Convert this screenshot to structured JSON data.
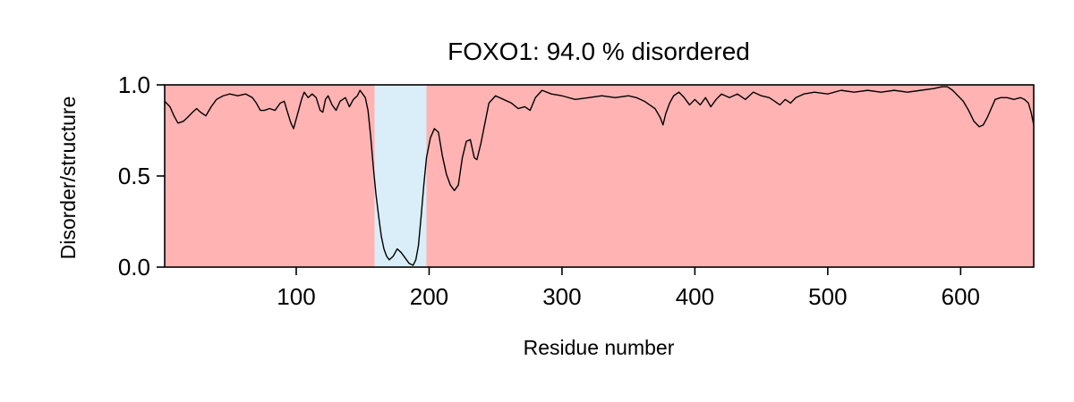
{
  "chart_data": {
    "type": "line",
    "title": "FOXO1: 94.0 % disordered",
    "xlabel": "Residue number",
    "ylabel": "Disorder/structure",
    "xlim": [
      1,
      655
    ],
    "ylim": [
      0.0,
      1.0
    ],
    "x_ticks": [
      100,
      200,
      300,
      400,
      500,
      600
    ],
    "x_tick_labels": [
      "100",
      "200",
      "300",
      "400",
      "500",
      "600"
    ],
    "y_ticks": [
      0.0,
      0.5,
      1.0
    ],
    "y_tick_labels": [
      "0.0",
      "0.5",
      "1.0"
    ],
    "grid": false,
    "regions": [
      {
        "label": "disordered",
        "start": 1,
        "end": 159,
        "color": "#ffb3b3"
      },
      {
        "label": "structured",
        "start": 159,
        "end": 198,
        "color": "#d9eef8"
      },
      {
        "label": "disordered",
        "start": 198,
        "end": 655,
        "color": "#ffb3b3"
      }
    ],
    "series": [
      {
        "color": "#000000",
        "points": [
          [
            1,
            0.91
          ],
          [
            5,
            0.88
          ],
          [
            8,
            0.83
          ],
          [
            11,
            0.79
          ],
          [
            15,
            0.8
          ],
          [
            18,
            0.82
          ],
          [
            22,
            0.85
          ],
          [
            25,
            0.87
          ],
          [
            28,
            0.85
          ],
          [
            32,
            0.83
          ],
          [
            36,
            0.88
          ],
          [
            40,
            0.92
          ],
          [
            45,
            0.94
          ],
          [
            50,
            0.95
          ],
          [
            56,
            0.94
          ],
          [
            62,
            0.95
          ],
          [
            67,
            0.93
          ],
          [
            70,
            0.9
          ],
          [
            73,
            0.86
          ],
          [
            76,
            0.86
          ],
          [
            80,
            0.87
          ],
          [
            84,
            0.86
          ],
          [
            88,
            0.9
          ],
          [
            91,
            0.91
          ],
          [
            93,
            0.86
          ],
          [
            96,
            0.79
          ],
          [
            98,
            0.76
          ],
          [
            101,
            0.84
          ],
          [
            104,
            0.92
          ],
          [
            106,
            0.96
          ],
          [
            109,
            0.93
          ],
          [
            112,
            0.95
          ],
          [
            115,
            0.93
          ],
          [
            118,
            0.86
          ],
          [
            120,
            0.85
          ],
          [
            122,
            0.92
          ],
          [
            124,
            0.94
          ],
          [
            127,
            0.89
          ],
          [
            130,
            0.86
          ],
          [
            133,
            0.91
          ],
          [
            137,
            0.93
          ],
          [
            140,
            0.88
          ],
          [
            143,
            0.92
          ],
          [
            146,
            0.94
          ],
          [
            148,
            0.97
          ],
          [
            150,
            0.95
          ],
          [
            152,
            0.93
          ],
          [
            154,
            0.86
          ],
          [
            156,
            0.72
          ],
          [
            158,
            0.55
          ],
          [
            160,
            0.4
          ],
          [
            162,
            0.28
          ],
          [
            164,
            0.17
          ],
          [
            166,
            0.1
          ],
          [
            168,
            0.06
          ],
          [
            170,
            0.04
          ],
          [
            173,
            0.06
          ],
          [
            176,
            0.1
          ],
          [
            179,
            0.08
          ],
          [
            182,
            0.05
          ],
          [
            185,
            0.02
          ],
          [
            188,
            0.01
          ],
          [
            190,
            0.04
          ],
          [
            192,
            0.12
          ],
          [
            194,
            0.28
          ],
          [
            196,
            0.45
          ],
          [
            198,
            0.6
          ],
          [
            201,
            0.71
          ],
          [
            204,
            0.76
          ],
          [
            207,
            0.74
          ],
          [
            210,
            0.61
          ],
          [
            213,
            0.51
          ],
          [
            216,
            0.45
          ],
          [
            219,
            0.42
          ],
          [
            222,
            0.45
          ],
          [
            225,
            0.6
          ],
          [
            228,
            0.69
          ],
          [
            231,
            0.7
          ],
          [
            234,
            0.6
          ],
          [
            236,
            0.59
          ],
          [
            239,
            0.68
          ],
          [
            242,
            0.79
          ],
          [
            245,
            0.9
          ],
          [
            250,
            0.94
          ],
          [
            256,
            0.92
          ],
          [
            262,
            0.9
          ],
          [
            267,
            0.87
          ],
          [
            272,
            0.88
          ],
          [
            276,
            0.86
          ],
          [
            280,
            0.93
          ],
          [
            285,
            0.97
          ],
          [
            292,
            0.95
          ],
          [
            300,
            0.94
          ],
          [
            310,
            0.92
          ],
          [
            320,
            0.93
          ],
          [
            330,
            0.94
          ],
          [
            340,
            0.93
          ],
          [
            350,
            0.94
          ],
          [
            356,
            0.93
          ],
          [
            362,
            0.91
          ],
          [
            366,
            0.89
          ],
          [
            370,
            0.87
          ],
          [
            374,
            0.82
          ],
          [
            376,
            0.78
          ],
          [
            378,
            0.84
          ],
          [
            381,
            0.9
          ],
          [
            384,
            0.94
          ],
          [
            388,
            0.96
          ],
          [
            392,
            0.93
          ],
          [
            396,
            0.89
          ],
          [
            400,
            0.92
          ],
          [
            404,
            0.89
          ],
          [
            408,
            0.93
          ],
          [
            412,
            0.88
          ],
          [
            416,
            0.92
          ],
          [
            420,
            0.95
          ],
          [
            426,
            0.93
          ],
          [
            432,
            0.95
          ],
          [
            438,
            0.92
          ],
          [
            444,
            0.96
          ],
          [
            450,
            0.94
          ],
          [
            456,
            0.93
          ],
          [
            460,
            0.91
          ],
          [
            464,
            0.89
          ],
          [
            468,
            0.92
          ],
          [
            472,
            0.9
          ],
          [
            476,
            0.93
          ],
          [
            482,
            0.95
          ],
          [
            490,
            0.96
          ],
          [
            500,
            0.95
          ],
          [
            510,
            0.97
          ],
          [
            520,
            0.96
          ],
          [
            530,
            0.97
          ],
          [
            540,
            0.96
          ],
          [
            550,
            0.97
          ],
          [
            560,
            0.96
          ],
          [
            570,
            0.97
          ],
          [
            580,
            0.98
          ],
          [
            586,
            0.99
          ],
          [
            590,
            0.99
          ],
          [
            594,
            0.97
          ],
          [
            598,
            0.94
          ],
          [
            602,
            0.91
          ],
          [
            606,
            0.86
          ],
          [
            610,
            0.8
          ],
          [
            614,
            0.77
          ],
          [
            617,
            0.78
          ],
          [
            620,
            0.82
          ],
          [
            623,
            0.87
          ],
          [
            626,
            0.92
          ],
          [
            630,
            0.93
          ],
          [
            635,
            0.93
          ],
          [
            640,
            0.92
          ],
          [
            645,
            0.93
          ],
          [
            648,
            0.92
          ],
          [
            651,
            0.9
          ],
          [
            653,
            0.85
          ],
          [
            655,
            0.78
          ]
        ]
      }
    ]
  }
}
